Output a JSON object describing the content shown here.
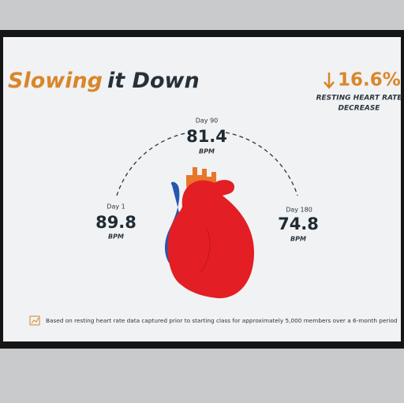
{
  "header": {
    "title_highlight": "Slowing",
    "title_rest": "it Down"
  },
  "stat": {
    "value": "16.6%",
    "caption_line1": "RESTING HEART RATE",
    "caption_line2": "DECREASE"
  },
  "readings": [
    {
      "day": "Day 1",
      "value": "89.8",
      "unit": "BPM"
    },
    {
      "day": "Day 90",
      "value": "81.4",
      "unit": "BPM"
    },
    {
      "day": "Day 180",
      "value": "74.8",
      "unit": "BPM"
    }
  ],
  "footnote": "Based on resting heart rate data captured prior to starting class for approximately 5,000 members over a 6-month period"
}
